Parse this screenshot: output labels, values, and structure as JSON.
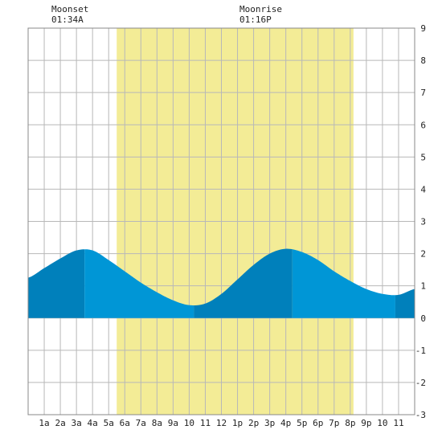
{
  "moon": {
    "moonset": {
      "label": "Moonset",
      "time": "01:34A",
      "hour": 1.567
    },
    "moonrise": {
      "label": "Moonrise",
      "time": "01:16P",
      "hour": 13.267
    }
  },
  "chart_data": {
    "type": "area",
    "title": "",
    "xlabel": "",
    "ylabel": "",
    "xlim": [
      0,
      24
    ],
    "ylim": [
      -3,
      9
    ],
    "grid": true,
    "daylight": {
      "start_hour": 5.5,
      "end_hour": 20.2
    },
    "x_tick_labels": [
      "1a",
      "2a",
      "3a",
      "4a",
      "5a",
      "6a",
      "7a",
      "8a",
      "9a",
      "10",
      "11",
      "12",
      "1p",
      "2p",
      "3p",
      "4p",
      "5p",
      "6p",
      "7p",
      "8p",
      "9p",
      "10",
      "11"
    ],
    "y_ticks": [
      -3,
      -2,
      -1,
      0,
      1,
      2,
      3,
      4,
      5,
      6,
      7,
      8,
      9
    ],
    "tide_extremes": [
      {
        "hour": 3.5,
        "height": 2.15,
        "type": "high"
      },
      {
        "hour": 10.3,
        "height": 0.4,
        "type": "low"
      },
      {
        "hour": 16.4,
        "height": 2.15,
        "type": "high"
      },
      {
        "hour": 22.8,
        "height": 0.7,
        "type": "low"
      }
    ],
    "series": [
      {
        "x": [
          0,
          1,
          2,
          3,
          4,
          5,
          6,
          7,
          8,
          9,
          10,
          11,
          12,
          13,
          14,
          15,
          16,
          17,
          18,
          19,
          20,
          21,
          22,
          23,
          24
        ],
        "y": [
          1.25,
          1.55,
          1.85,
          2.1,
          2.1,
          1.8,
          1.45,
          1.1,
          0.8,
          0.55,
          0.4,
          0.45,
          0.75,
          1.2,
          1.65,
          2.0,
          2.15,
          2.05,
          1.8,
          1.45,
          1.15,
          0.9,
          0.75,
          0.72,
          0.9
        ]
      }
    ],
    "colors": {
      "daylight": "#f3ec96",
      "grid": "#b8b8b8",
      "frame": "#888888",
      "tide_light": "#0096d6",
      "tide_dark": "#0080bb"
    }
  }
}
